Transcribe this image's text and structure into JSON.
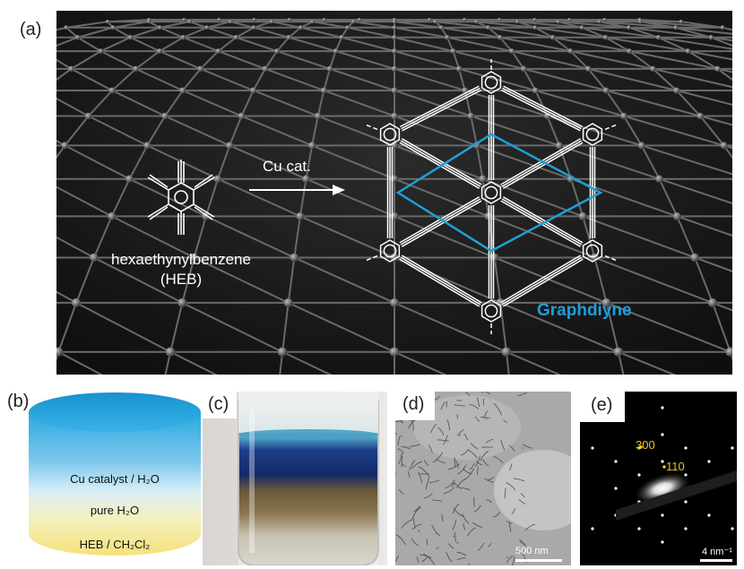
{
  "figure": {
    "panel_a": {
      "label": "(a)",
      "reaction_label": "Cu cat.",
      "reactant_name": "hexaethynylbenzene",
      "reactant_abbrev": "(HEB)",
      "product_name": "Graphdiyne",
      "product_color": "#1f9fd8",
      "background_color": "#1c1c1c"
    },
    "panel_b": {
      "label": "(b)",
      "layers": [
        {
          "text": "Cu catalyst / H₂O",
          "color": "#27a9e1"
        },
        {
          "text": "pure H₂O",
          "color": "#cfe9f6"
        },
        {
          "text": "HEB / CH₂Cl₂",
          "color": "#f5e58a"
        }
      ]
    },
    "panel_c": {
      "label": "(c)"
    },
    "panel_d": {
      "label": "(d)",
      "scale_bar": "500 nm"
    },
    "panel_e": {
      "label": "(e)",
      "spot_labels": [
        "300",
        "110"
      ],
      "scale_bar": "4 nm⁻¹",
      "label_color": "#e8c21a"
    }
  }
}
